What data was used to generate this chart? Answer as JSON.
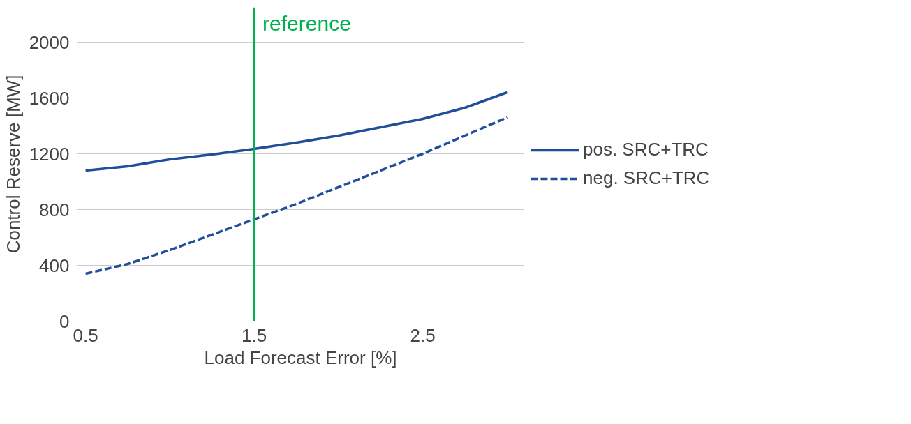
{
  "chart_data": {
    "type": "line",
    "xlabel": "Load Forecast Error [%]",
    "ylabel": "Control Reserve [MW]",
    "x": [
      0.5,
      0.75,
      1.0,
      1.25,
      1.5,
      1.75,
      2.0,
      2.25,
      2.5,
      2.75,
      3.0
    ],
    "series": [
      {
        "name": "pos. SRC+TRC",
        "color": "#1f4e9a",
        "line_style": "solid",
        "values": [
          1080,
          1110,
          1160,
          1195,
          1235,
          1280,
          1330,
          1390,
          1450,
          1530,
          1640
        ]
      },
      {
        "name": "neg. SRC+TRC",
        "color": "#1f4e9a",
        "line_style": "dashed",
        "values": [
          340,
          410,
          510,
          620,
          730,
          840,
          960,
          1080,
          1200,
          1330,
          1460
        ]
      }
    ],
    "xlim": [
      0.45,
      3.1
    ],
    "xticks": [
      0.5,
      1.5,
      2.5
    ],
    "ylim": [
      0,
      2250
    ],
    "yticks": [
      0,
      400,
      800,
      1200,
      1600,
      2000
    ],
    "grid": "y",
    "legend": "right",
    "marker": "none",
    "ref_lines": [
      {
        "axis": "x",
        "value": 1.5,
        "label": "reference",
        "color": "#00b050"
      }
    ]
  }
}
